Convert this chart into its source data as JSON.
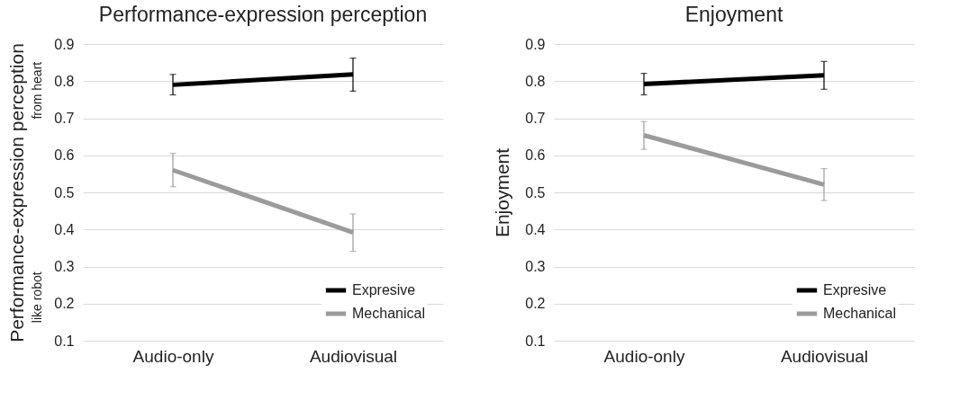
{
  "chart_data": [
    {
      "type": "line",
      "title": "Performance-expression perception",
      "ylabel": "Performance-expression perception",
      "annotations": [
        "from heart",
        "like robot"
      ],
      "categories": [
        "Audio-only",
        "Audiovisual"
      ],
      "ylim": [
        0.1,
        0.9
      ],
      "yticks": [
        0.1,
        0.2,
        0.3,
        0.4,
        0.5,
        0.6,
        0.7,
        0.8,
        0.9
      ],
      "grid": "y",
      "legend": "bottom right",
      "marker": "none",
      "line_style": "solid",
      "series": [
        {
          "name": "Expresive",
          "color": "#000000",
          "values": [
            0.79,
            0.818
          ],
          "errors": [
            [
              0.763,
              0.818
            ],
            [
              0.773,
              0.862
            ]
          ]
        },
        {
          "name": "Mechanical",
          "color": "#9b9b9b",
          "values": [
            0.56,
            0.392
          ],
          "errors": [
            [
              0.515,
              0.605
            ],
            [
              0.341,
              0.442
            ]
          ]
        }
      ]
    },
    {
      "type": "line",
      "title": "Enjoyment",
      "ylabel": "Enjoyment",
      "categories": [
        "Audio-only",
        "Audiovisual"
      ],
      "ylim": [
        0.1,
        0.9
      ],
      "yticks": [
        0.1,
        0.2,
        0.3,
        0.4,
        0.5,
        0.6,
        0.7,
        0.8,
        0.9
      ],
      "grid": "y",
      "legend": "bottom right",
      "marker": "none",
      "line_style": "solid",
      "series": [
        {
          "name": "Expresive",
          "color": "#000000",
          "values": [
            0.792,
            0.816
          ],
          "errors": [
            [
              0.763,
              0.821
            ],
            [
              0.778,
              0.853
            ]
          ]
        },
        {
          "name": "Mechanical",
          "color": "#9b9b9b",
          "values": [
            0.654,
            0.521
          ],
          "errors": [
            [
              0.616,
              0.691
            ],
            [
              0.478,
              0.564
            ]
          ]
        }
      ]
    }
  ]
}
